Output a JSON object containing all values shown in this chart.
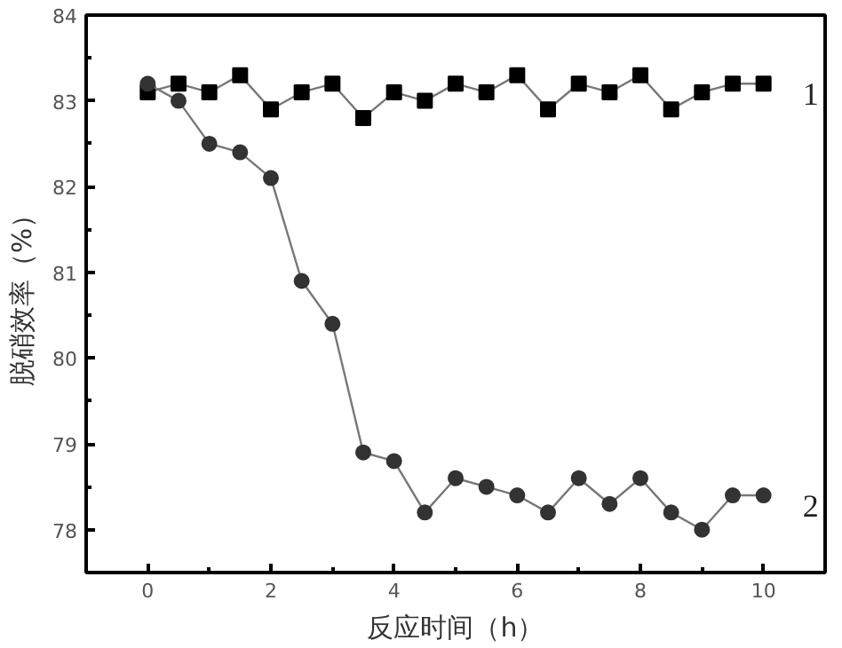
{
  "chart_data": {
    "type": "line",
    "xlabel": "反应时间（h）",
    "ylabel": "脱硝效率（%）",
    "x": [
      0,
      0.5,
      1,
      1.5,
      2,
      2.5,
      3,
      3.5,
      4,
      4.5,
      5,
      5.5,
      6,
      6.5,
      7,
      7.5,
      8,
      8.5,
      9,
      9.5,
      10
    ],
    "series": [
      {
        "name": "1",
        "color": "#000000",
        "marker": "square",
        "values": [
          83.1,
          83.2,
          83.1,
          83.3,
          82.9,
          83.1,
          83.2,
          82.8,
          83.1,
          83.0,
          83.2,
          83.1,
          83.3,
          82.9,
          83.2,
          83.1,
          83.3,
          82.9,
          83.1,
          83.2,
          83.2
        ]
      },
      {
        "name": "2",
        "color": "#333333",
        "marker": "circle",
        "values": [
          83.2,
          83.0,
          82.5,
          82.4,
          82.1,
          80.9,
          80.4,
          78.9,
          78.8,
          78.2,
          78.6,
          78.5,
          78.4,
          78.2,
          78.6,
          78.3,
          78.6,
          78.2,
          78.0,
          78.4,
          78.4
        ]
      }
    ],
    "xlim": [
      -1,
      11
    ],
    "ylim": [
      77.5,
      84
    ],
    "xticks": [
      0,
      2,
      4,
      6,
      8,
      10
    ],
    "yticks": [
      78,
      79,
      80,
      81,
      82,
      83,
      84
    ],
    "grid": false,
    "line_style": "solid"
  }
}
